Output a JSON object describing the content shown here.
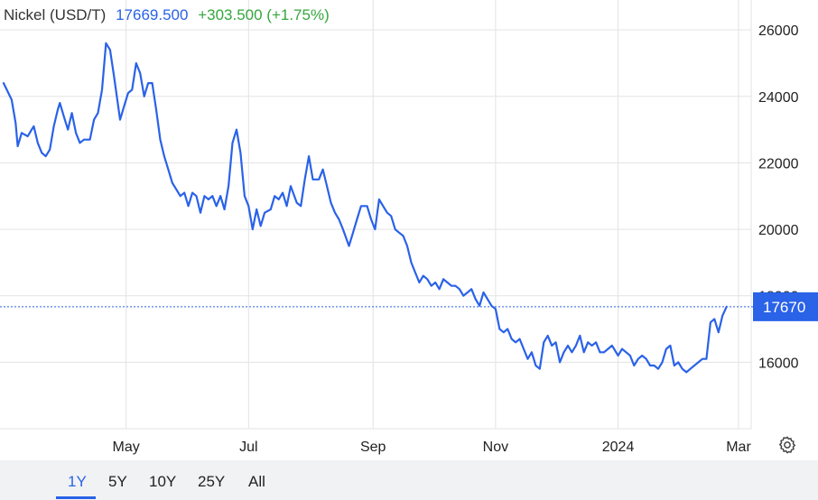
{
  "header": {
    "name": "Nickel (USD/T)",
    "price": "17669.500",
    "change": "+303.500 (+1.75%)"
  },
  "colors": {
    "line": "#2a62e8",
    "price_tag": "#2a62e8",
    "change": "#34a63d",
    "grid": "#e3e3e3",
    "bottom_bar": "#f1f2f4"
  },
  "price_tag": {
    "label": "17670",
    "value": 17670
  },
  "range_buttons": [
    {
      "label": "1Y",
      "active": true
    },
    {
      "label": "5Y",
      "active": false
    },
    {
      "label": "10Y",
      "active": false
    },
    {
      "label": "25Y",
      "active": false
    },
    {
      "label": "All",
      "active": false
    }
  ],
  "settings_icon": "gear-icon",
  "chart_data": {
    "type": "line",
    "title": "",
    "xlabel": "",
    "ylabel": "",
    "x_range": [
      "2023-03-01",
      "2024-03-01"
    ],
    "ylim": [
      14000,
      26900
    ],
    "y_ticks": [
      16000,
      18000,
      20000,
      22000,
      24000,
      26000
    ],
    "x_ticks": [
      {
        "date": "2023-05-01",
        "label": "May"
      },
      {
        "date": "2023-07-01",
        "label": "Jul"
      },
      {
        "date": "2023-09-01",
        "label": "Sep"
      },
      {
        "date": "2023-11-01",
        "label": "Nov"
      },
      {
        "date": "2024-01-01",
        "label": "2024"
      },
      {
        "date": "2024-03-01",
        "label": "Mar"
      }
    ],
    "grid": true,
    "series": [
      {
        "name": "",
        "points": [
          [
            "2023-03-01",
            24400
          ],
          [
            "2023-03-05",
            23900
          ],
          [
            "2023-03-07",
            23200
          ],
          [
            "2023-03-08",
            22500
          ],
          [
            "2023-03-10",
            22900
          ],
          [
            "2023-03-13",
            22800
          ],
          [
            "2023-03-15",
            23000
          ],
          [
            "2023-03-16",
            23100
          ],
          [
            "2023-03-18",
            22600
          ],
          [
            "2023-03-20",
            22300
          ],
          [
            "2023-03-22",
            22200
          ],
          [
            "2023-03-24",
            22400
          ],
          [
            "2023-03-26",
            23100
          ],
          [
            "2023-03-28",
            23600
          ],
          [
            "2023-03-29",
            23800
          ],
          [
            "2023-03-31",
            23400
          ],
          [
            "2023-04-02",
            23000
          ],
          [
            "2023-04-04",
            23500
          ],
          [
            "2023-04-06",
            22900
          ],
          [
            "2023-04-08",
            22600
          ],
          [
            "2023-04-10",
            22700
          ],
          [
            "2023-04-13",
            22700
          ],
          [
            "2023-04-15",
            23300
          ],
          [
            "2023-04-17",
            23500
          ],
          [
            "2023-04-19",
            24200
          ],
          [
            "2023-04-21",
            25600
          ],
          [
            "2023-04-23",
            25400
          ],
          [
            "2023-04-25",
            24600
          ],
          [
            "2023-04-28",
            23300
          ],
          [
            "2023-04-30",
            23700
          ],
          [
            "2023-05-02",
            24100
          ],
          [
            "2023-05-04",
            24200
          ],
          [
            "2023-05-06",
            25000
          ],
          [
            "2023-05-08",
            24700
          ],
          [
            "2023-05-10",
            24000
          ],
          [
            "2023-05-12",
            24400
          ],
          [
            "2023-05-14",
            24400
          ],
          [
            "2023-05-16",
            23600
          ],
          [
            "2023-05-18",
            22700
          ],
          [
            "2023-05-20",
            22200
          ],
          [
            "2023-05-22",
            21800
          ],
          [
            "2023-05-24",
            21400
          ],
          [
            "2023-05-26",
            21200
          ],
          [
            "2023-05-28",
            21000
          ],
          [
            "2023-05-30",
            21100
          ],
          [
            "2023-06-01",
            20700
          ],
          [
            "2023-06-03",
            21100
          ],
          [
            "2023-06-05",
            21000
          ],
          [
            "2023-06-07",
            20500
          ],
          [
            "2023-06-09",
            21000
          ],
          [
            "2023-06-11",
            20900
          ],
          [
            "2023-06-13",
            21000
          ],
          [
            "2023-06-15",
            20700
          ],
          [
            "2023-06-17",
            21000
          ],
          [
            "2023-06-19",
            20600
          ],
          [
            "2023-06-21",
            21300
          ],
          [
            "2023-06-23",
            22600
          ],
          [
            "2023-06-25",
            23000
          ],
          [
            "2023-06-27",
            22300
          ],
          [
            "2023-06-29",
            21000
          ],
          [
            "2023-07-01",
            20700
          ],
          [
            "2023-07-03",
            20000
          ],
          [
            "2023-07-05",
            20600
          ],
          [
            "2023-07-07",
            20100
          ],
          [
            "2023-07-09",
            20500
          ],
          [
            "2023-07-12",
            20600
          ],
          [
            "2023-07-14",
            21000
          ],
          [
            "2023-07-16",
            20900
          ],
          [
            "2023-07-18",
            21100
          ],
          [
            "2023-07-20",
            20700
          ],
          [
            "2023-07-22",
            21300
          ],
          [
            "2023-07-25",
            20800
          ],
          [
            "2023-07-27",
            20700
          ],
          [
            "2023-07-29",
            21500
          ],
          [
            "2023-07-31",
            22200
          ],
          [
            "2023-08-02",
            21500
          ],
          [
            "2023-08-05",
            21500
          ],
          [
            "2023-08-07",
            21800
          ],
          [
            "2023-08-09",
            21300
          ],
          [
            "2023-08-11",
            20800
          ],
          [
            "2023-08-13",
            20500
          ],
          [
            "2023-08-15",
            20300
          ],
          [
            "2023-08-17",
            20000
          ],
          [
            "2023-08-20",
            19500
          ],
          [
            "2023-08-22",
            19900
          ],
          [
            "2023-08-24",
            20300
          ],
          [
            "2023-08-26",
            20700
          ],
          [
            "2023-08-29",
            20700
          ],
          [
            "2023-08-31",
            20300
          ],
          [
            "2023-09-02",
            20000
          ],
          [
            "2023-09-04",
            20900
          ],
          [
            "2023-09-06",
            20700
          ],
          [
            "2023-09-08",
            20500
          ],
          [
            "2023-09-10",
            20400
          ],
          [
            "2023-09-12",
            20000
          ],
          [
            "2023-09-14",
            19900
          ],
          [
            "2023-09-16",
            19800
          ],
          [
            "2023-09-18",
            19500
          ],
          [
            "2023-09-20",
            19000
          ],
          [
            "2023-09-22",
            18700
          ],
          [
            "2023-09-24",
            18400
          ],
          [
            "2023-09-26",
            18600
          ],
          [
            "2023-09-28",
            18500
          ],
          [
            "2023-09-30",
            18300
          ],
          [
            "2023-10-02",
            18400
          ],
          [
            "2023-10-04",
            18200
          ],
          [
            "2023-10-06",
            18500
          ],
          [
            "2023-10-08",
            18400
          ],
          [
            "2023-10-10",
            18300
          ],
          [
            "2023-10-12",
            18300
          ],
          [
            "2023-10-14",
            18200
          ],
          [
            "2023-10-16",
            18000
          ],
          [
            "2023-10-18",
            18100
          ],
          [
            "2023-10-20",
            18200
          ],
          [
            "2023-10-22",
            17900
          ],
          [
            "2023-10-24",
            17700
          ],
          [
            "2023-10-26",
            18100
          ],
          [
            "2023-10-28",
            17900
          ],
          [
            "2023-10-30",
            17700
          ],
          [
            "2023-11-01",
            17600
          ],
          [
            "2023-11-03",
            17000
          ],
          [
            "2023-11-05",
            16900
          ],
          [
            "2023-11-07",
            17000
          ],
          [
            "2023-11-09",
            16700
          ],
          [
            "2023-11-11",
            16600
          ],
          [
            "2023-11-13",
            16700
          ],
          [
            "2023-11-15",
            16400
          ],
          [
            "2023-11-17",
            16100
          ],
          [
            "2023-11-19",
            16300
          ],
          [
            "2023-11-21",
            15900
          ],
          [
            "2023-11-23",
            15800
          ],
          [
            "2023-11-25",
            16600
          ],
          [
            "2023-11-27",
            16800
          ],
          [
            "2023-11-29",
            16500
          ],
          [
            "2023-12-01",
            16600
          ],
          [
            "2023-12-03",
            16000
          ],
          [
            "2023-12-05",
            16300
          ],
          [
            "2023-12-07",
            16500
          ],
          [
            "2023-12-09",
            16300
          ],
          [
            "2023-12-11",
            16500
          ],
          [
            "2023-12-13",
            16800
          ],
          [
            "2023-12-15",
            16300
          ],
          [
            "2023-12-17",
            16600
          ],
          [
            "2023-12-19",
            16500
          ],
          [
            "2023-12-21",
            16600
          ],
          [
            "2023-12-23",
            16300
          ],
          [
            "2023-12-25",
            16300
          ],
          [
            "2023-12-27",
            16400
          ],
          [
            "2023-12-29",
            16500
          ],
          [
            "2024-01-01",
            16200
          ],
          [
            "2024-01-03",
            16400
          ],
          [
            "2024-01-05",
            16300
          ],
          [
            "2024-01-07",
            16200
          ],
          [
            "2024-01-09",
            15900
          ],
          [
            "2024-01-11",
            16100
          ],
          [
            "2024-01-13",
            16200
          ],
          [
            "2024-01-15",
            16100
          ],
          [
            "2024-01-17",
            15900
          ],
          [
            "2024-01-19",
            15900
          ],
          [
            "2024-01-21",
            15800
          ],
          [
            "2024-01-23",
            16000
          ],
          [
            "2024-01-25",
            16400
          ],
          [
            "2024-01-27",
            16500
          ],
          [
            "2024-01-29",
            15900
          ],
          [
            "2024-01-31",
            16000
          ],
          [
            "2024-02-02",
            15800
          ],
          [
            "2024-02-04",
            15700
          ],
          [
            "2024-02-06",
            15800
          ],
          [
            "2024-02-08",
            15900
          ],
          [
            "2024-02-10",
            16000
          ],
          [
            "2024-02-12",
            16100
          ],
          [
            "2024-02-14",
            16100
          ],
          [
            "2024-02-16",
            17200
          ],
          [
            "2024-02-18",
            17300
          ],
          [
            "2024-02-20",
            16900
          ],
          [
            "2024-02-22",
            17400
          ],
          [
            "2024-02-24",
            17670
          ]
        ]
      }
    ]
  }
}
